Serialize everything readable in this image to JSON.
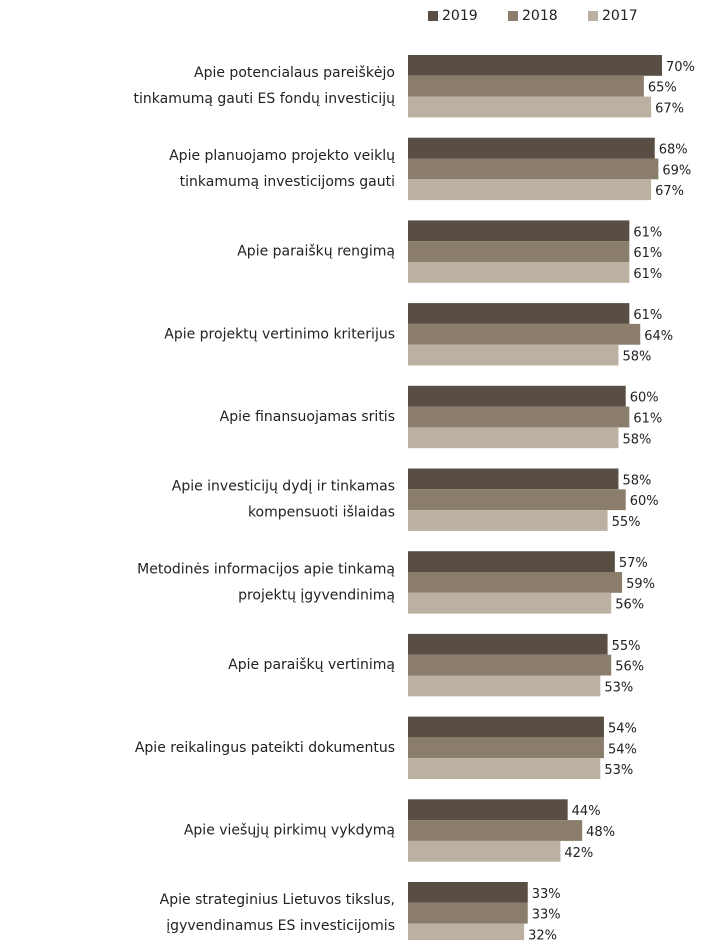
{
  "chart_data": {
    "type": "bar",
    "orientation": "horizontal",
    "categories": [
      [
        "Apie potencialaus pareiškėjo",
        "tinkamumą gauti ES fondų investicijų"
      ],
      [
        "Apie planuojamo projekto veiklų",
        "tinkamumą investicijoms gauti"
      ],
      [
        "Apie paraiškų rengimą"
      ],
      [
        "Apie projektų vertinimo kriterijus"
      ],
      [
        "Apie finansuojamas sritis"
      ],
      [
        "Apie investicijų dydį ir tinkamas",
        "kompensuoti išlaidas"
      ],
      [
        "Metodinės informacijos apie tinkamą",
        "projektų įgyvendinimą"
      ],
      [
        "Apie paraiškų vertinimą"
      ],
      [
        "Apie reikalingus pateikti dokumentus"
      ],
      [
        "Apie viešųjų pirkimų vykdymą"
      ],
      [
        "Apie strateginius Lietuvos tikslus,",
        "įgyvendinamus ES investicijomis"
      ]
    ],
    "series": [
      {
        "name": "2019",
        "color": "#594e43",
        "values": [
          70,
          68,
          61,
          61,
          60,
          58,
          57,
          55,
          54,
          44,
          33
        ],
        "value_labels": [
          "70%",
          "68%",
          "61%",
          "61%",
          "60%",
          "58%",
          "57%",
          "55%",
          "54%",
          "44%",
          "33%"
        ]
      },
      {
        "name": "2018",
        "color": "#8b7d6c",
        "values": [
          65,
          69,
          61,
          64,
          61,
          60,
          59,
          56,
          54,
          48,
          33
        ],
        "value_labels": [
          "65%",
          "69%",
          "61%",
          "64%",
          "61%",
          "60%",
          "59%",
          "56%",
          "54%",
          "48%",
          "33%"
        ]
      },
      {
        "name": "2017",
        "color": "#bbb0a2",
        "values": [
          67,
          67,
          61,
          58,
          58,
          55,
          56,
          53,
          53,
          42,
          32
        ],
        "value_labels": [
          "67%",
          "67%",
          "61%",
          "58%",
          "58%",
          "55%",
          "56%",
          "53%",
          "53%",
          "42%",
          "32%"
        ]
      }
    ],
    "legend": "top-right"
  }
}
